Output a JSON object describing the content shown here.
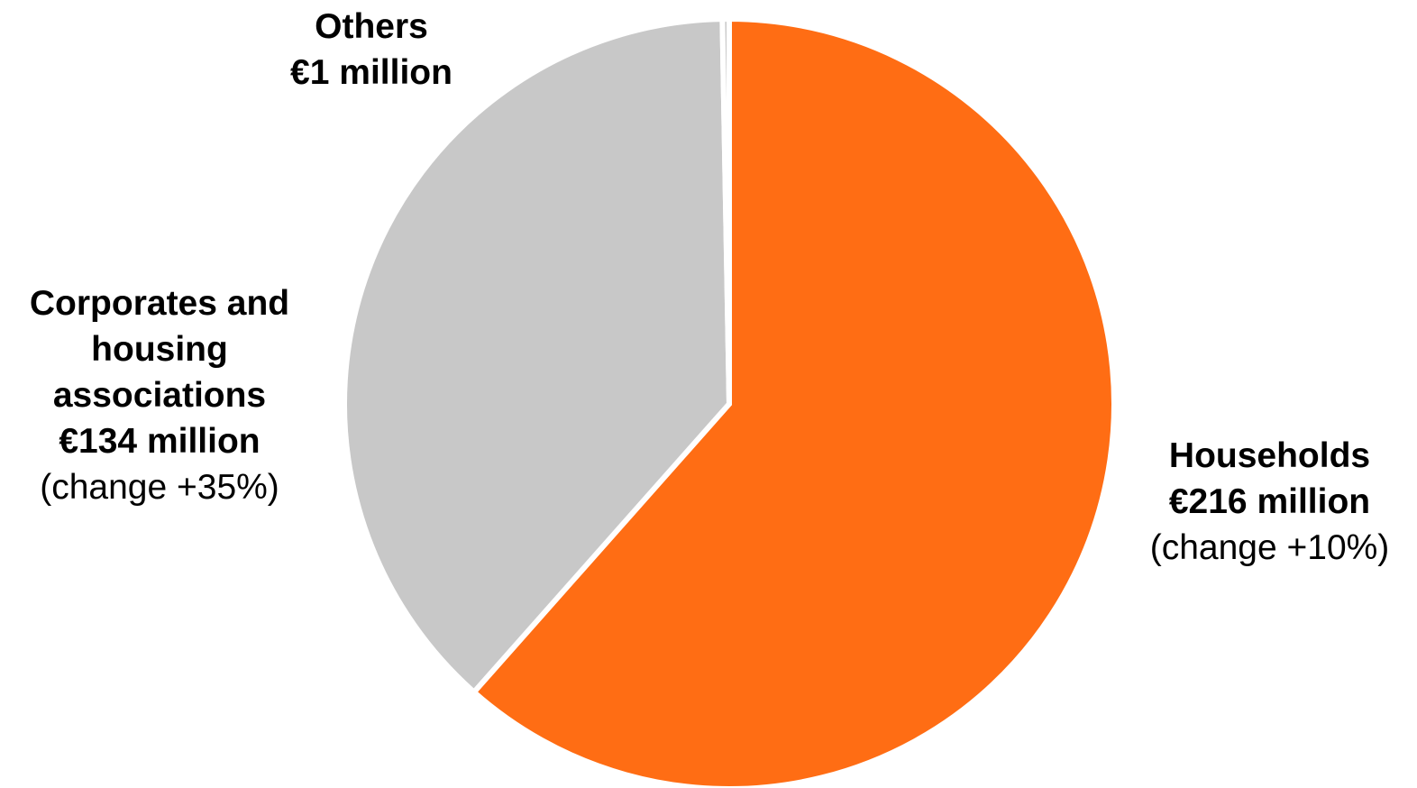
{
  "chart_data": {
    "type": "pie",
    "slices": [
      {
        "name": "Households",
        "value": 216,
        "value_label": "€216 million",
        "change_label": "(change +10%)",
        "color": "#FF6D14"
      },
      {
        "name": "Corporates and housing associations",
        "name_lines": [
          "Corporates and",
          "housing",
          "associations"
        ],
        "value": 134,
        "value_label": "€134 million",
        "change_label": "(change +35%)",
        "color": "#C8C8C8"
      },
      {
        "name": "Others",
        "value": 1,
        "value_label": "€1 million",
        "change_label": "",
        "color": "#C8C8C8"
      }
    ],
    "start_angle_deg": 0,
    "direction": "clockwise",
    "separator_color": "#FFFFFF"
  }
}
